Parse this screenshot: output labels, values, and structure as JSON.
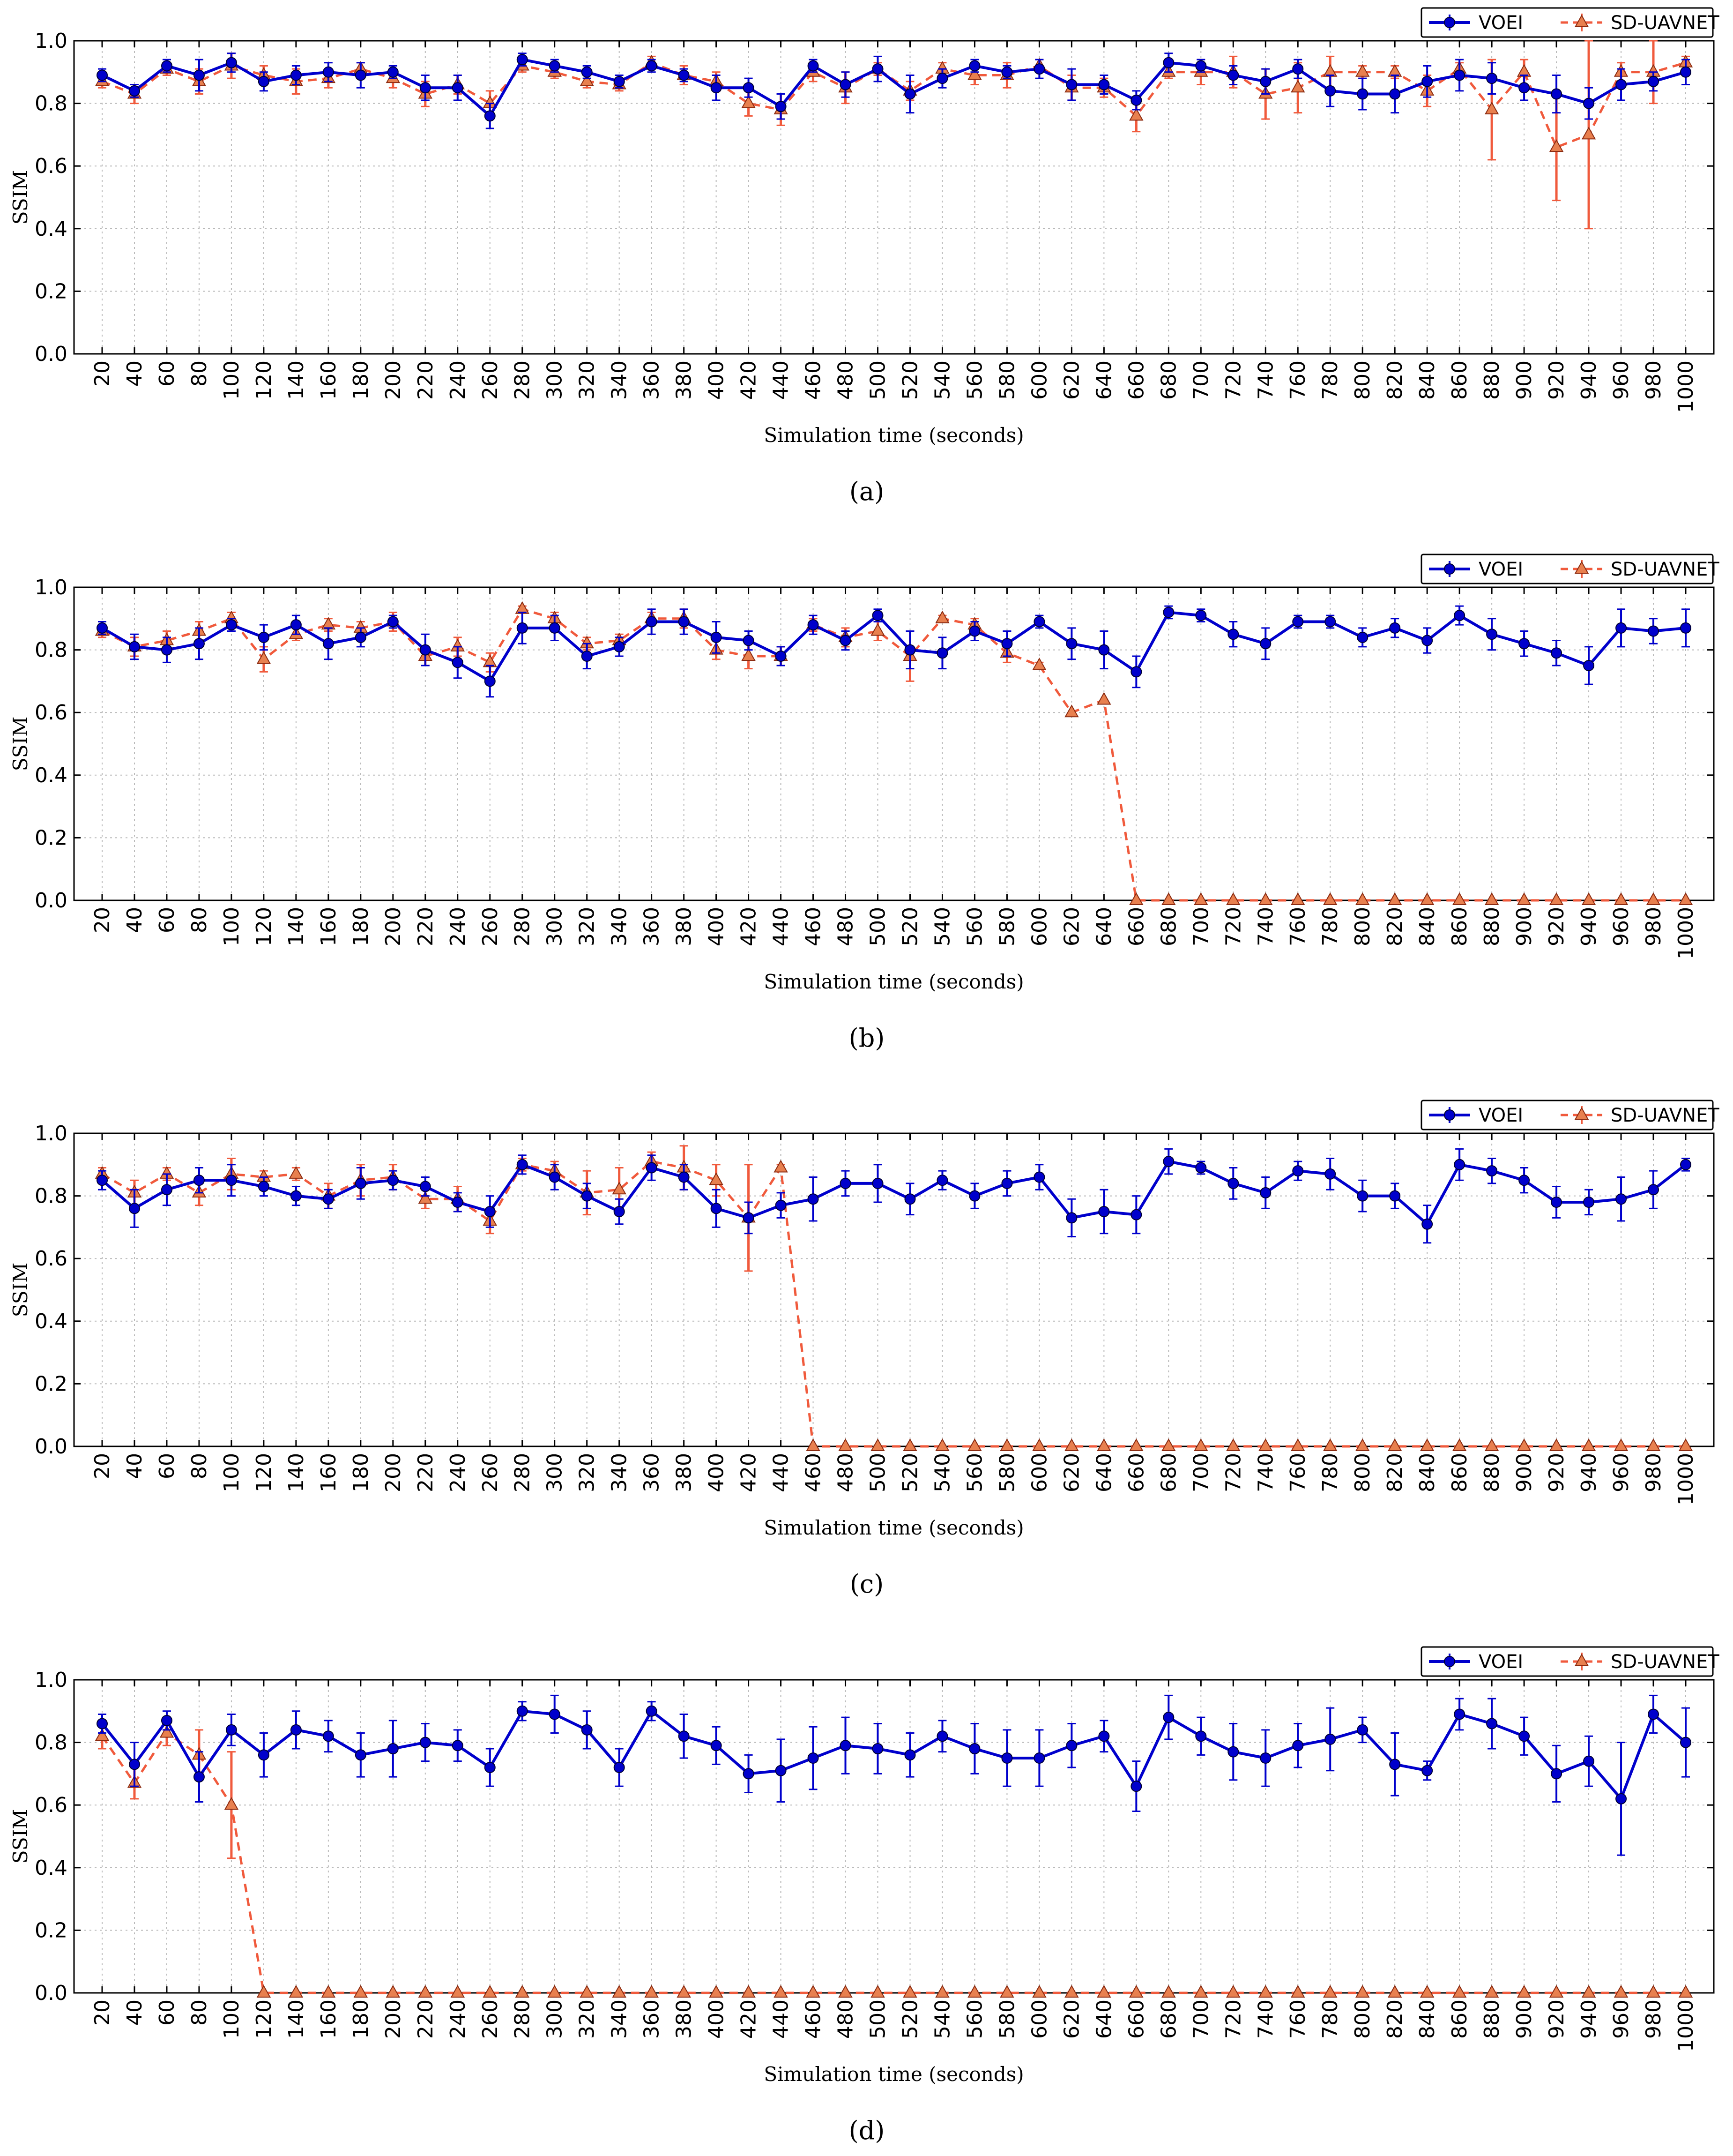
{
  "colors": {
    "voei": "#0000cc",
    "sd": "#f05a3c",
    "sd_fill": "#e8804f",
    "grid": "#b9b9b9"
  },
  "chart_data": [
    {
      "type": "line",
      "panel_label": "(a)",
      "xlabel": "Simulation time (seconds)",
      "ylabel": "SSIM",
      "ylim": [
        0.0,
        1.0
      ],
      "yticks": [
        "0.0",
        "0.2",
        "0.4",
        "0.6",
        "0.8",
        "1.0"
      ],
      "grid": true,
      "legend": "top-right",
      "categories": [
        "20",
        "40",
        "60",
        "80",
        "100",
        "120",
        "140",
        "160",
        "180",
        "200",
        "220",
        "240",
        "260",
        "280",
        "300",
        "320",
        "340",
        "360",
        "380",
        "400",
        "420",
        "440",
        "460",
        "480",
        "500",
        "520",
        "540",
        "560",
        "580",
        "600",
        "620",
        "640",
        "660",
        "680",
        "700",
        "720",
        "740",
        "760",
        "780",
        "800",
        "820",
        "840",
        "860",
        "880",
        "900",
        "920",
        "940",
        "960",
        "980",
        "1000"
      ],
      "series": [
        {
          "name": "VOEI",
          "style": "solid-circle",
          "values": [
            0.89,
            0.84,
            0.92,
            0.89,
            0.93,
            0.87,
            0.89,
            0.9,
            0.89,
            0.9,
            0.85,
            0.85,
            0.76,
            0.94,
            0.92,
            0.9,
            0.87,
            0.92,
            0.89,
            0.85,
            0.85,
            0.79,
            0.92,
            0.86,
            0.91,
            0.83,
            0.88,
            0.92,
            0.9,
            0.91,
            0.86,
            0.86,
            0.81,
            0.93,
            0.92,
            0.89,
            0.87,
            0.91,
            0.84,
            0.83,
            0.83,
            0.87,
            0.89,
            0.88,
            0.85,
            0.83,
            0.8,
            0.86,
            0.87,
            0.9
          ],
          "errors": [
            0.02,
            0.02,
            0.02,
            0.05,
            0.03,
            0.03,
            0.03,
            0.03,
            0.04,
            0.02,
            0.04,
            0.04,
            0.04,
            0.02,
            0.02,
            0.02,
            0.02,
            0.02,
            0.02,
            0.04,
            0.03,
            0.04,
            0.02,
            0.04,
            0.04,
            0.06,
            0.03,
            0.02,
            0.02,
            0.03,
            0.05,
            0.03,
            0.03,
            0.03,
            0.02,
            0.03,
            0.04,
            0.03,
            0.05,
            0.05,
            0.06,
            0.05,
            0.05,
            0.05,
            0.04,
            0.06,
            0.05,
            0.05,
            0.03,
            0.04
          ]
        },
        {
          "name": "SD-UAVNET",
          "style": "dashed-triangle",
          "values": [
            0.87,
            0.83,
            0.91,
            0.87,
            0.92,
            0.89,
            0.87,
            0.88,
            0.91,
            0.88,
            0.83,
            0.86,
            0.8,
            0.92,
            0.9,
            0.87,
            0.86,
            0.93,
            0.89,
            0.87,
            0.8,
            0.78,
            0.9,
            0.85,
            0.91,
            0.84,
            0.91,
            0.89,
            0.89,
            0.92,
            0.85,
            0.85,
            0.76,
            0.9,
            0.9,
            0.9,
            0.83,
            0.85,
            0.9,
            0.9,
            0.9,
            0.84,
            0.91,
            0.78,
            0.9,
            0.66,
            0.7,
            0.9,
            0.9,
            0.93
          ],
          "errors": [
            0.02,
            0.03,
            0.02,
            0.04,
            0.04,
            0.03,
            0.04,
            0.03,
            0.02,
            0.03,
            0.04,
            0.03,
            0.04,
            0.02,
            0.02,
            0.02,
            0.02,
            0.02,
            0.03,
            0.03,
            0.04,
            0.05,
            0.03,
            0.05,
            0.02,
            0.03,
            0.02,
            0.03,
            0.04,
            0.02,
            0.04,
            0.03,
            0.05,
            0.02,
            0.04,
            0.05,
            0.08,
            0.08,
            0.05,
            0.02,
            0.02,
            0.05,
            0.02,
            0.16,
            0.04,
            0.17,
            0.3,
            0.03,
            0.1,
            0.02
          ]
        }
      ]
    },
    {
      "type": "line",
      "panel_label": "(b)",
      "xlabel": "Simulation time (seconds)",
      "ylabel": "SSIM",
      "ylim": [
        0.0,
        1.0
      ],
      "yticks": [
        "0.0",
        "0.2",
        "0.4",
        "0.6",
        "0.8",
        "1.0"
      ],
      "grid": true,
      "legend": "top-right",
      "categories": [
        "20",
        "40",
        "60",
        "80",
        "100",
        "120",
        "140",
        "160",
        "180",
        "200",
        "220",
        "240",
        "260",
        "280",
        "300",
        "320",
        "340",
        "360",
        "380",
        "400",
        "420",
        "440",
        "460",
        "480",
        "500",
        "520",
        "540",
        "560",
        "580",
        "600",
        "620",
        "640",
        "660",
        "680",
        "700",
        "720",
        "740",
        "760",
        "780",
        "800",
        "820",
        "840",
        "860",
        "880",
        "900",
        "920",
        "940",
        "960",
        "980",
        "1000"
      ],
      "series": [
        {
          "name": "VOEI",
          "style": "solid-circle",
          "values": [
            0.87,
            0.81,
            0.8,
            0.82,
            0.88,
            0.84,
            0.88,
            0.82,
            0.84,
            0.89,
            0.8,
            0.76,
            0.7,
            0.87,
            0.87,
            0.78,
            0.81,
            0.89,
            0.89,
            0.84,
            0.83,
            0.78,
            0.88,
            0.83,
            0.91,
            0.8,
            0.79,
            0.86,
            0.82,
            0.89,
            0.82,
            0.8,
            0.73,
            0.92,
            0.91,
            0.85,
            0.82,
            0.89,
            0.89,
            0.84,
            0.87,
            0.83,
            0.91,
            0.85,
            0.82,
            0.79,
            0.75,
            0.87,
            0.86,
            0.87
          ],
          "errors": [
            0.02,
            0.04,
            0.04,
            0.05,
            0.02,
            0.04,
            0.03,
            0.05,
            0.03,
            0.02,
            0.05,
            0.05,
            0.05,
            0.05,
            0.04,
            0.04,
            0.03,
            0.04,
            0.04,
            0.05,
            0.03,
            0.03,
            0.03,
            0.03,
            0.02,
            0.06,
            0.05,
            0.03,
            0.04,
            0.02,
            0.05,
            0.06,
            0.05,
            0.02,
            0.02,
            0.04,
            0.05,
            0.02,
            0.02,
            0.03,
            0.03,
            0.04,
            0.03,
            0.05,
            0.04,
            0.04,
            0.06,
            0.06,
            0.04,
            0.06
          ]
        },
        {
          "name": "SD-UAVNET",
          "style": "dashed-triangle",
          "values": [
            0.86,
            0.81,
            0.83,
            0.86,
            0.9,
            0.77,
            0.85,
            0.88,
            0.87,
            0.89,
            0.78,
            0.81,
            0.76,
            0.93,
            0.9,
            0.82,
            0.83,
            0.9,
            0.9,
            0.8,
            0.78,
            0.78,
            0.88,
            0.84,
            0.86,
            0.78,
            0.9,
            0.88,
            0.79,
            0.75,
            0.6,
            0.64,
            0.0,
            0.0,
            0.0,
            0.0,
            0.0,
            0.0,
            0.0,
            0.0,
            0.0,
            0.0,
            0.0,
            0.0,
            0.0,
            0.0,
            0.0,
            0.0,
            0.0,
            0.0
          ],
          "errors": [
            0.02,
            0.03,
            0.03,
            0.03,
            0.02,
            0.04,
            0.02,
            0.02,
            0.02,
            0.03,
            0.03,
            0.03,
            0.03,
            0.01,
            0.02,
            0.02,
            0.02,
            0.02,
            0.03,
            0.03,
            0.04,
            0.03,
            0.02,
            0.03,
            0.03,
            0.08,
            0.01,
            0.02,
            0.03,
            0.01,
            0.0,
            0.0,
            0,
            0,
            0,
            0,
            0,
            0,
            0,
            0,
            0,
            0,
            0,
            0,
            0,
            0,
            0,
            0,
            0,
            0
          ]
        }
      ]
    },
    {
      "type": "line",
      "panel_label": "(c)",
      "xlabel": "Simulation time (seconds)",
      "ylabel": "SSIM",
      "ylim": [
        0.0,
        1.0
      ],
      "yticks": [
        "0.0",
        "0.2",
        "0.4",
        "0.6",
        "0.8",
        "1.0"
      ],
      "grid": true,
      "legend": "top-right",
      "categories": [
        "20",
        "40",
        "60",
        "80",
        "100",
        "120",
        "140",
        "160",
        "180",
        "200",
        "220",
        "240",
        "260",
        "280",
        "300",
        "320",
        "340",
        "360",
        "380",
        "400",
        "420",
        "440",
        "460",
        "480",
        "500",
        "520",
        "540",
        "560",
        "580",
        "600",
        "620",
        "640",
        "660",
        "680",
        "700",
        "720",
        "740",
        "760",
        "780",
        "800",
        "820",
        "840",
        "860",
        "880",
        "900",
        "920",
        "940",
        "960",
        "980",
        "1000"
      ],
      "series": [
        {
          "name": "VOEI",
          "style": "solid-circle",
          "values": [
            0.85,
            0.76,
            0.82,
            0.85,
            0.85,
            0.83,
            0.8,
            0.79,
            0.84,
            0.85,
            0.83,
            0.78,
            0.75,
            0.9,
            0.86,
            0.8,
            0.75,
            0.89,
            0.86,
            0.76,
            0.73,
            0.77,
            0.79,
            0.84,
            0.84,
            0.79,
            0.85,
            0.8,
            0.84,
            0.86,
            0.73,
            0.75,
            0.74,
            0.91,
            0.89,
            0.84,
            0.81,
            0.88,
            0.87,
            0.8,
            0.8,
            0.71,
            0.9,
            0.88,
            0.85,
            0.78,
            0.78,
            0.79,
            0.82,
            0.9
          ],
          "errors": [
            0.03,
            0.06,
            0.05,
            0.04,
            0.05,
            0.03,
            0.03,
            0.03,
            0.05,
            0.03,
            0.03,
            0.03,
            0.05,
            0.03,
            0.04,
            0.04,
            0.04,
            0.04,
            0.04,
            0.06,
            0.05,
            0.04,
            0.07,
            0.04,
            0.06,
            0.05,
            0.03,
            0.04,
            0.04,
            0.04,
            0.06,
            0.07,
            0.06,
            0.04,
            0.02,
            0.05,
            0.05,
            0.03,
            0.05,
            0.05,
            0.04,
            0.06,
            0.05,
            0.04,
            0.04,
            0.05,
            0.04,
            0.07,
            0.06,
            0.02
          ]
        },
        {
          "name": "SD-UAVNET",
          "style": "dashed-triangle",
          "values": [
            0.87,
            0.81,
            0.87,
            0.81,
            0.87,
            0.86,
            0.87,
            0.8,
            0.85,
            0.86,
            0.79,
            0.79,
            0.72,
            0.9,
            0.88,
            0.81,
            0.82,
            0.91,
            0.89,
            0.85,
            0.73,
            0.89,
            0.0,
            0.0,
            0.0,
            0.0,
            0.0,
            0.0,
            0.0,
            0.0,
            0.0,
            0.0,
            0.0,
            0.0,
            0.0,
            0.0,
            0.0,
            0.0,
            0.0,
            0.0,
            0.0,
            0.0,
            0.0,
            0.0,
            0.0,
            0.0,
            0.0,
            0.0,
            0.0,
            0.0
          ],
          "errors": [
            0.02,
            0.04,
            0.02,
            0.04,
            0.05,
            0.02,
            0.02,
            0.04,
            0.05,
            0.04,
            0.03,
            0.04,
            0.04,
            0.02,
            0.03,
            0.07,
            0.07,
            0.03,
            0.07,
            0.05,
            0.17,
            0.01,
            0,
            0,
            0,
            0,
            0,
            0,
            0,
            0,
            0,
            0,
            0,
            0,
            0,
            0,
            0,
            0,
            0,
            0,
            0,
            0,
            0,
            0,
            0,
            0,
            0,
            0,
            0,
            0
          ]
        }
      ]
    },
    {
      "type": "line",
      "panel_label": "(d)",
      "xlabel": "Simulation time (seconds)",
      "ylabel": "SSIM",
      "ylim": [
        0.0,
        1.0
      ],
      "yticks": [
        "0.0",
        "0.2",
        "0.4",
        "0.6",
        "0.8",
        "1.0"
      ],
      "grid": true,
      "legend": "top-right",
      "categories": [
        "20",
        "40",
        "60",
        "80",
        "100",
        "120",
        "140",
        "160",
        "180",
        "200",
        "220",
        "240",
        "260",
        "280",
        "300",
        "320",
        "340",
        "360",
        "380",
        "400",
        "420",
        "440",
        "460",
        "480",
        "500",
        "520",
        "540",
        "560",
        "580",
        "600",
        "620",
        "640",
        "660",
        "680",
        "700",
        "720",
        "740",
        "760",
        "780",
        "800",
        "820",
        "840",
        "860",
        "880",
        "900",
        "920",
        "940",
        "960",
        "980",
        "1000"
      ],
      "series": [
        {
          "name": "VOEI",
          "style": "solid-circle",
          "values": [
            0.86,
            0.73,
            0.87,
            0.69,
            0.84,
            0.76,
            0.84,
            0.82,
            0.76,
            0.78,
            0.8,
            0.79,
            0.72,
            0.9,
            0.89,
            0.84,
            0.72,
            0.9,
            0.82,
            0.79,
            0.7,
            0.71,
            0.75,
            0.79,
            0.78,
            0.76,
            0.82,
            0.78,
            0.75,
            0.75,
            0.79,
            0.82,
            0.66,
            0.88,
            0.82,
            0.77,
            0.75,
            0.79,
            0.81,
            0.84,
            0.73,
            0.71,
            0.89,
            0.86,
            0.82,
            0.7,
            0.74,
            0.62,
            0.89,
            0.8
          ],
          "errors": [
            0.03,
            0.07,
            0.03,
            0.08,
            0.05,
            0.07,
            0.06,
            0.05,
            0.07,
            0.09,
            0.06,
            0.05,
            0.06,
            0.03,
            0.06,
            0.06,
            0.06,
            0.03,
            0.07,
            0.06,
            0.06,
            0.1,
            0.1,
            0.09,
            0.08,
            0.07,
            0.05,
            0.08,
            0.09,
            0.09,
            0.07,
            0.05,
            0.08,
            0.07,
            0.06,
            0.09,
            0.09,
            0.07,
            0.1,
            0.04,
            0.1,
            0.03,
            0.05,
            0.08,
            0.06,
            0.09,
            0.08,
            0.18,
            0.06,
            0.11
          ]
        },
        {
          "name": "SD-UAVNET",
          "style": "dashed-triangle",
          "values": [
            0.82,
            0.67,
            0.83,
            0.76,
            0.6,
            0.0,
            0.0,
            0.0,
            0.0,
            0.0,
            0.0,
            0.0,
            0.0,
            0.0,
            0.0,
            0.0,
            0.0,
            0.0,
            0.0,
            0.0,
            0.0,
            0.0,
            0.0,
            0.0,
            0.0,
            0.0,
            0.0,
            0.0,
            0.0,
            0.0,
            0.0,
            0.0,
            0.0,
            0.0,
            0.0,
            0.0,
            0.0,
            0.0,
            0.0,
            0.0,
            0.0,
            0.0,
            0.0,
            0.0,
            0.0,
            0.0,
            0.0,
            0.0,
            0.0,
            0.0
          ],
          "errors": [
            0.04,
            0.05,
            0.04,
            0.08,
            0.17,
            0,
            0,
            0,
            0,
            0,
            0,
            0,
            0,
            0,
            0,
            0,
            0,
            0,
            0,
            0,
            0,
            0,
            0,
            0,
            0,
            0,
            0,
            0,
            0,
            0,
            0,
            0,
            0,
            0,
            0,
            0,
            0,
            0,
            0,
            0,
            0,
            0,
            0,
            0,
            0,
            0,
            0,
            0,
            0,
            0
          ]
        }
      ]
    }
  ]
}
